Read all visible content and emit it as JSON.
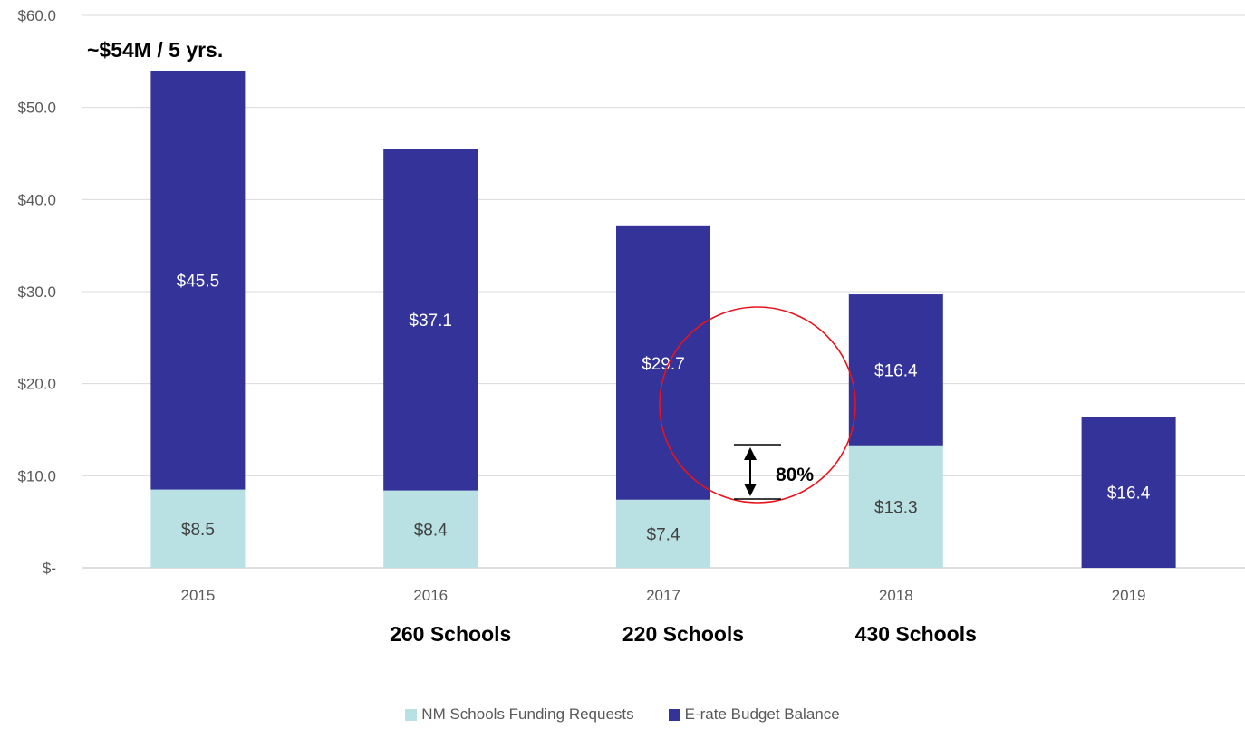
{
  "chart_data": {
    "type": "bar",
    "stacked": true,
    "categories": [
      "2015",
      "2016",
      "2017",
      "2018",
      "2019"
    ],
    "series": [
      {
        "name": "NM Schools Funding Requests",
        "color": "#b9e0e3",
        "values": [
          8.5,
          8.4,
          7.4,
          13.3,
          0
        ],
        "labels": [
          "$8.5",
          "$8.4",
          "$7.4",
          "$13.3",
          "-"
        ]
      },
      {
        "name": "E-rate Budget Balance",
        "color": "#333399",
        "values": [
          45.5,
          37.1,
          29.7,
          16.4,
          16.4
        ],
        "labels": [
          "$45.5",
          "$37.1",
          "$29.7",
          "$16.4",
          "$16.4"
        ]
      }
    ],
    "ylim": [
      0,
      60
    ],
    "yticks": [
      0,
      10,
      20,
      30,
      40,
      50,
      60
    ],
    "ytick_labels": [
      "$-",
      "$10.0",
      "$20.0",
      "$30.0",
      "$40.0",
      "$50.0",
      "$60.0"
    ],
    "grid": true,
    "legend_position": "bottom",
    "annotations": {
      "total": "~$54M / 5 yrs.",
      "schools": [
        {
          "category": "2016",
          "text": "260 Schools"
        },
        {
          "category": "2017",
          "text": "220 Schools"
        },
        {
          "category": "2018",
          "text": "430 Schools"
        }
      ],
      "change": "80%"
    },
    "highlight_color": "#e8141c"
  }
}
